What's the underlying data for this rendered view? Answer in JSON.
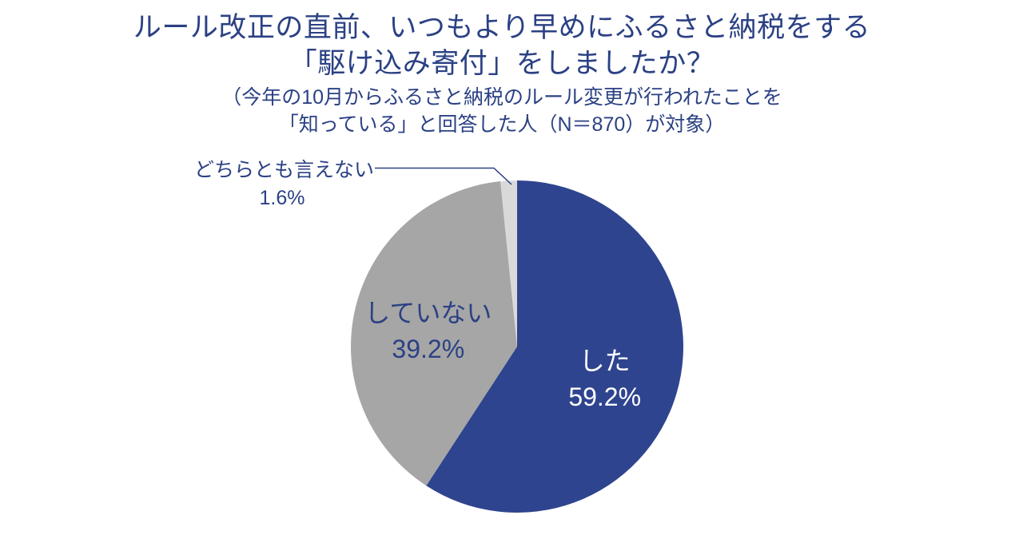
{
  "title": {
    "line1": "ルール改正の直前、いつもより早めにふるさと納税をする",
    "line2": "「駆け込み寄付」をしましたか？"
  },
  "subtitle": {
    "line1": "（今年の10月からふるさと納税のルール変更が行われたことを",
    "line2": "「知っている」と回答した人（N＝870）が対象）"
  },
  "colors": {
    "background": "#ffffff",
    "text_navy": "#2b4184",
    "slice_blue": "#2e448e",
    "slice_gray": "#a6a6a6",
    "slice_light_gray": "#d9d9d9"
  },
  "chart_data": {
    "type": "pie",
    "title": "ルール改正の直前、いつもより早めにふるさと納税をする「駆け込み寄付」をしましたか？",
    "subtitle": "（今年の10月からふるさと納税のルール変更が行われたことを「知っている」と回答した人（N＝870）が対象）",
    "sample_size_label": "N＝870",
    "unit": "%",
    "start_angle_deg": 0,
    "direction": "clockwise",
    "legend_position": "none",
    "leader_line_color": "#2b4184",
    "slices": [
      {
        "label": "した",
        "value": 59.2,
        "value_display": "59.2%",
        "color": "#2e448e",
        "text_color": "#ffffff",
        "label_placement": "inside"
      },
      {
        "label": "していない",
        "value": 39.2,
        "value_display": "39.2%",
        "color": "#a6a6a6",
        "text_color": "#2b4184",
        "label_placement": "inside"
      },
      {
        "label": "どちらとも言えない",
        "value": 1.6,
        "value_display": "1.6%",
        "color": "#d9d9d9",
        "text_color": "#2b4184",
        "label_placement": "outside-left-callout"
      }
    ]
  }
}
